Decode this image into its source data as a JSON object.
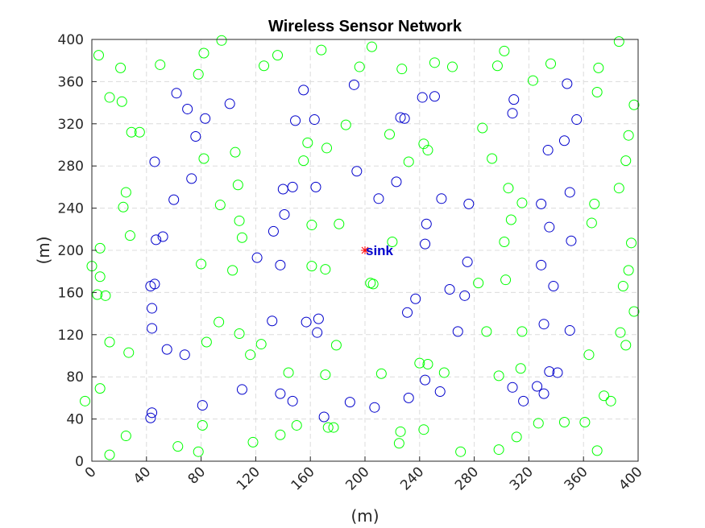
{
  "chart_data": {
    "type": "scatter",
    "title": "Wireless Sensor Network",
    "xlabel": "(m)",
    "ylabel": "(m)",
    "xlim": [
      0,
      400
    ],
    "ylim": [
      0,
      400
    ],
    "xticks": [
      0,
      40,
      80,
      120,
      160,
      200,
      240,
      280,
      320,
      360,
      400
    ],
    "yticks": [
      0,
      40,
      80,
      120,
      160,
      200,
      240,
      280,
      320,
      360,
      400
    ],
    "grid": true,
    "legend": false,
    "colors": {
      "series_1": "#00ff00",
      "series_2": "#0000cc",
      "sink": "#ff0000"
    },
    "sink": {
      "x": 200,
      "y": 200,
      "label": "sink"
    },
    "series": [
      {
        "marker": "circle",
        "color": "#00ff00",
        "points": [
          [
            95,
            399
          ],
          [
            205,
            393
          ],
          [
            302,
            389
          ],
          [
            168,
            390
          ],
          [
            136,
            385
          ],
          [
            5,
            385
          ],
          [
            82,
            387
          ],
          [
            386,
            398
          ],
          [
            21,
            373
          ],
          [
            50,
            376
          ],
          [
            126,
            375
          ],
          [
            196,
            374
          ],
          [
            227,
            372
          ],
          [
            251,
            378
          ],
          [
            264,
            374
          ],
          [
            297,
            375
          ],
          [
            336,
            377
          ],
          [
            371,
            373
          ],
          [
            78,
            367
          ],
          [
            323,
            361
          ],
          [
            13,
            345
          ],
          [
            22,
            341
          ],
          [
            370,
            350
          ],
          [
            397,
            338
          ],
          [
            29,
            312
          ],
          [
            35,
            312
          ],
          [
            186,
            319
          ],
          [
            218,
            310
          ],
          [
            286,
            316
          ],
          [
            158,
            302
          ],
          [
            172,
            297
          ],
          [
            243,
            301
          ],
          [
            246,
            295
          ],
          [
            393,
            309
          ],
          [
            82,
            287
          ],
          [
            105,
            293
          ],
          [
            155,
            285
          ],
          [
            232,
            284
          ],
          [
            293,
            287
          ],
          [
            391,
            285
          ],
          [
            25,
            255
          ],
          [
            23,
            241
          ],
          [
            107,
            262
          ],
          [
            94,
            243
          ],
          [
            305,
            259
          ],
          [
            315,
            245
          ],
          [
            368,
            244
          ],
          [
            386,
            259
          ],
          [
            28,
            214
          ],
          [
            6,
            202
          ],
          [
            0,
            185
          ],
          [
            6,
            175
          ],
          [
            4,
            158
          ],
          [
            10,
            157
          ],
          [
            108,
            228
          ],
          [
            110,
            212
          ],
          [
            161,
            224
          ],
          [
            181,
            225
          ],
          [
            220,
            208
          ],
          [
            307,
            229
          ],
          [
            366,
            226
          ],
          [
            395,
            207
          ],
          [
            80,
            187
          ],
          [
            103,
            181
          ],
          [
            161,
            185
          ],
          [
            171,
            182
          ],
          [
            204,
            169
          ],
          [
            206,
            168
          ],
          [
            283,
            169
          ],
          [
            302,
            208
          ],
          [
            303,
            172
          ],
          [
            389,
            166
          ],
          [
            393,
            181
          ],
          [
            397,
            142
          ],
          [
            13,
            113
          ],
          [
            27,
            103
          ],
          [
            93,
            132
          ],
          [
            108,
            121
          ],
          [
            84,
            113
          ],
          [
            116,
            101
          ],
          [
            124,
            111
          ],
          [
            179,
            110
          ],
          [
            144,
            84
          ],
          [
            171,
            82
          ],
          [
            212,
            83
          ],
          [
            240,
            93
          ],
          [
            246,
            92
          ],
          [
            258,
            84
          ],
          [
            289,
            123
          ],
          [
            298,
            81
          ],
          [
            314,
            88
          ],
          [
            315,
            123
          ],
          [
            364,
            101
          ],
          [
            387,
            122
          ],
          [
            391,
            110
          ],
          [
            -5,
            57
          ],
          [
            6,
            69
          ],
          [
            13,
            6
          ],
          [
            25,
            24
          ],
          [
            63,
            14
          ],
          [
            78,
            9
          ],
          [
            81,
            34
          ],
          [
            118,
            18
          ],
          [
            138,
            25
          ],
          [
            150,
            34
          ],
          [
            173,
            32
          ],
          [
            177,
            32
          ],
          [
            225,
            17
          ],
          [
            226,
            28
          ],
          [
            243,
            30
          ],
          [
            270,
            9
          ],
          [
            298,
            11
          ],
          [
            311,
            23
          ],
          [
            327,
            36
          ],
          [
            346,
            37
          ],
          [
            361,
            37
          ],
          [
            370,
            10
          ],
          [
            375,
            62
          ],
          [
            380,
            57
          ]
        ]
      },
      {
        "marker": "circle",
        "color": "#0000cc",
        "points": [
          [
            62,
            349
          ],
          [
            70,
            334
          ],
          [
            76,
            308
          ],
          [
            83,
            325
          ],
          [
            101,
            339
          ],
          [
            155,
            352
          ],
          [
            149,
            323
          ],
          [
            163,
            324
          ],
          [
            192,
            357
          ],
          [
            226,
            326
          ],
          [
            229,
            325
          ],
          [
            242,
            345
          ],
          [
            251,
            346
          ],
          [
            309,
            343
          ],
          [
            308,
            330
          ],
          [
            348,
            358
          ],
          [
            355,
            324
          ],
          [
            46,
            284
          ],
          [
            73,
            268
          ],
          [
            60,
            248
          ],
          [
            140,
            258
          ],
          [
            147,
            260
          ],
          [
            141,
            234
          ],
          [
            164,
            260
          ],
          [
            194,
            275
          ],
          [
            210,
            249
          ],
          [
            223,
            265
          ],
          [
            256,
            249
          ],
          [
            245,
            225
          ],
          [
            276,
            244
          ],
          [
            334,
            295
          ],
          [
            346,
            304
          ],
          [
            329,
            244
          ],
          [
            350,
            255
          ],
          [
            335,
            222
          ],
          [
            351,
            209
          ],
          [
            47,
            210
          ],
          [
            52,
            213
          ],
          [
            43,
            166
          ],
          [
            46,
            168
          ],
          [
            121,
            193
          ],
          [
            133,
            218
          ],
          [
            138,
            186
          ],
          [
            244,
            206
          ],
          [
            275,
            189
          ],
          [
            262,
            163
          ],
          [
            273,
            157
          ],
          [
            237,
            154
          ],
          [
            231,
            141
          ],
          [
            44,
            145
          ],
          [
            44,
            126
          ],
          [
            55,
            106
          ],
          [
            68,
            101
          ],
          [
            132,
            133
          ],
          [
            157,
            132
          ],
          [
            166,
            135
          ],
          [
            165,
            122
          ],
          [
            268,
            123
          ],
          [
            329,
            186
          ],
          [
            338,
            166
          ],
          [
            331,
            130
          ],
          [
            350,
            124
          ],
          [
            81,
            53
          ],
          [
            110,
            68
          ],
          [
            138,
            64
          ],
          [
            147,
            57
          ],
          [
            170,
            42
          ],
          [
            189,
            56
          ],
          [
            207,
            51
          ],
          [
            232,
            60
          ],
          [
            244,
            77
          ],
          [
            255,
            66
          ],
          [
            308,
            70
          ],
          [
            316,
            57
          ],
          [
            326,
            71
          ],
          [
            331,
            64
          ],
          [
            335,
            85
          ],
          [
            341,
            84
          ],
          [
            43,
            41
          ],
          [
            44,
            46
          ]
        ]
      }
    ]
  }
}
